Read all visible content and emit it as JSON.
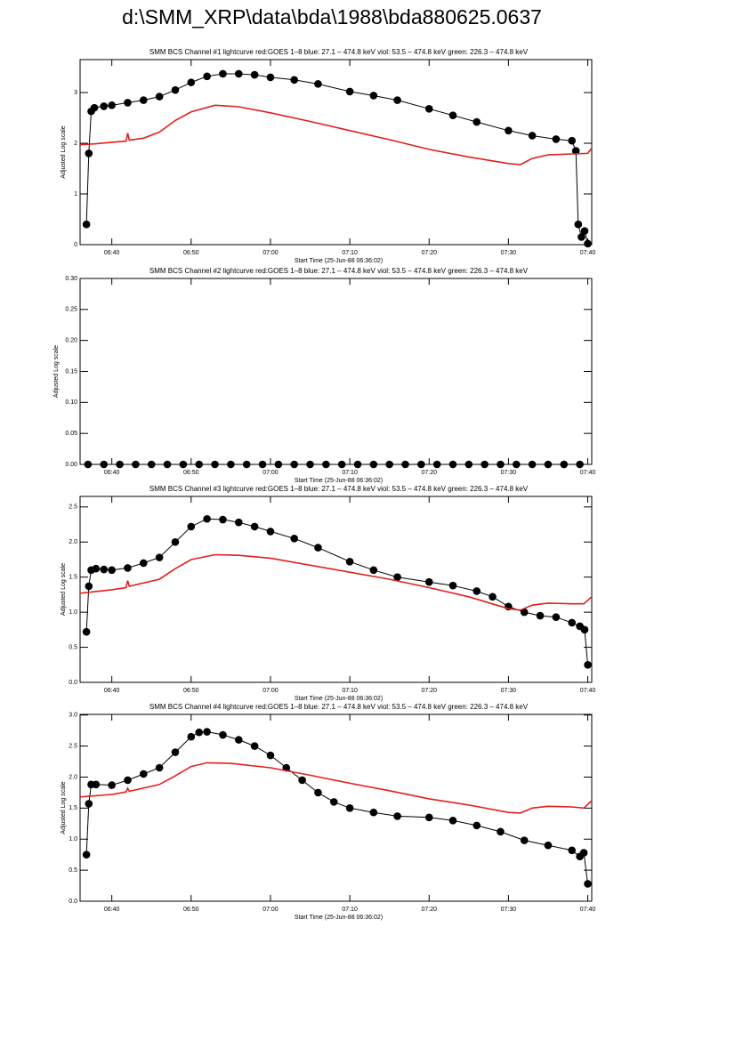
{
  "title": "d:\\SMM_XRP\\data\\bda\\1988\\bda880625.0637",
  "chart_data": [
    {
      "type": "line",
      "title": "SMM BCS Channel #1 lightcurve  red:GOES 1–8  blue: 27.1 – 474.8 keV  viol: 53.5 – 474.8 keV  green: 226.3 – 474.8 keV",
      "x_label": "Start Time (25-Jun-88 06:36:02)",
      "y_label": "Adjusted Log scale",
      "xlim": [
        396,
        460.5
      ],
      "ylim": [
        0,
        3.65
      ],
      "xticks": [
        {
          "value": 400,
          "label": "06:40"
        },
        {
          "value": 410,
          "label": "06:50"
        },
        {
          "value": 420,
          "label": "07:00"
        },
        {
          "value": 430,
          "label": "07:10"
        },
        {
          "value": 440,
          "label": "07:20"
        },
        {
          "value": 450,
          "label": "07:30"
        },
        {
          "value": 460,
          "label": "07:40"
        }
      ],
      "yticks": [
        0,
        1,
        2,
        3
      ],
      "series": [
        {
          "color": "#000000",
          "marker": "circle",
          "x": [
            396.8,
            397.1,
            397.4,
            397.8,
            399,
            400,
            402,
            404,
            406,
            408,
            410,
            412,
            414,
            416,
            418,
            420,
            423,
            426,
            430,
            433,
            436,
            440,
            443,
            446,
            450,
            453,
            456,
            458,
            458.5,
            458.8,
            459.2,
            459.6,
            460
          ],
          "values": [
            0.4,
            1.8,
            2.63,
            2.7,
            2.73,
            2.75,
            2.8,
            2.85,
            2.92,
            3.05,
            3.2,
            3.32,
            3.37,
            3.37,
            3.35,
            3.3,
            3.25,
            3.17,
            3.02,
            2.94,
            2.85,
            2.68,
            2.55,
            2.42,
            2.25,
            2.15,
            2.08,
            2.05,
            1.85,
            0.4,
            0.15,
            0.27,
            0.02
          ]
        },
        {
          "color": "#e0201b",
          "x": [
            396,
            398,
            400,
            401.8,
            402,
            402.2,
            404,
            406,
            408,
            410,
            413,
            416,
            420,
            425,
            430,
            435,
            440,
            445,
            450,
            451.5,
            453,
            455,
            458,
            460,
            460.5
          ],
          "values": [
            1.97,
            1.99,
            2.02,
            2.04,
            2.2,
            2.06,
            2.1,
            2.22,
            2.45,
            2.62,
            2.75,
            2.72,
            2.6,
            2.43,
            2.25,
            2.07,
            1.88,
            1.73,
            1.6,
            1.58,
            1.7,
            1.77,
            1.79,
            1.8,
            1.9
          ]
        }
      ]
    },
    {
      "type": "line",
      "title": "SMM BCS Channel #2 lightcurve  red:GOES 1–8  blue: 27.1 – 474.8 keV  viol: 53.5 – 474.8 keV  green: 226.3 – 474.8 keV",
      "x_label": "Start Time (25-Jun-88 06:36:02)",
      "y_label": "Adjusted Log scale",
      "xlim": [
        396,
        460.5
      ],
      "ylim": [
        0,
        0.3
      ],
      "xticks": [
        {
          "value": 400,
          "label": "06:40"
        },
        {
          "value": 410,
          "label": "06:50"
        },
        {
          "value": 420,
          "label": "07:00"
        },
        {
          "value": 430,
          "label": "07:10"
        },
        {
          "value": 440,
          "label": "07:20"
        },
        {
          "value": 450,
          "label": "07:30"
        },
        {
          "value": 460,
          "label": "07:40"
        }
      ],
      "yticks": [
        {
          "value": 0,
          "label": "0.00"
        },
        {
          "value": 0.05,
          "label": "0.05"
        },
        {
          "value": 0.1,
          "label": "0.10"
        },
        {
          "value": 0.15,
          "label": "0.15"
        },
        {
          "value": 0.2,
          "label": "0.20"
        },
        {
          "value": 0.25,
          "label": "0.25"
        },
        {
          "value": 0.3,
          "label": "0.30"
        }
      ],
      "series": [
        {
          "color": "#000000",
          "marker": "circle",
          "x": [
            397,
            399,
            401,
            403,
            405,
            407,
            409,
            411,
            413,
            415,
            417,
            419,
            421,
            423,
            425,
            427,
            429,
            431,
            433,
            435,
            437,
            439,
            441,
            443,
            445,
            447,
            449,
            451,
            453,
            455,
            457,
            459
          ],
          "values": [
            0,
            0,
            0,
            0,
            0,
            0,
            0,
            0,
            0,
            0,
            0,
            0,
            0,
            0,
            0,
            0,
            0,
            0,
            0,
            0,
            0,
            0,
            0,
            0,
            0,
            0,
            0,
            0,
            0,
            0,
            0,
            0
          ]
        }
      ]
    },
    {
      "type": "line",
      "title": "SMM BCS Channel #3 lightcurve  red:GOES 1–8  blue: 27.1 – 474.8 keV  viol: 53.5 – 474.8 keV  green: 226.3 – 474.8 keV",
      "x_label": "Start Time (25-Jun-88 06:36:02)",
      "y_label": "Adjusted Log scale",
      "xlim": [
        396,
        460.5
      ],
      "ylim": [
        0,
        2.65
      ],
      "xticks": [
        {
          "value": 400,
          "label": "06:40"
        },
        {
          "value": 410,
          "label": "06:50"
        },
        {
          "value": 420,
          "label": "07:00"
        },
        {
          "value": 430,
          "label": "07:10"
        },
        {
          "value": 440,
          "label": "07:20"
        },
        {
          "value": 450,
          "label": "07:30"
        },
        {
          "value": 460,
          "label": "07:40"
        }
      ],
      "yticks": [
        {
          "value": 0,
          "label": "0.0"
        },
        {
          "value": 0.5,
          "label": "0.5"
        },
        {
          "value": 1,
          "label": "1.0"
        },
        {
          "value": 1.5,
          "label": "1.5"
        },
        {
          "value": 2,
          "label": "2.0"
        },
        {
          "value": 2.5,
          "label": "2.5"
        }
      ],
      "series": [
        {
          "color": "#000000",
          "marker": "circle",
          "x": [
            396.8,
            397.1,
            397.4,
            398,
            399,
            400,
            402,
            404,
            406,
            408,
            410,
            412,
            414,
            416,
            418,
            420,
            423,
            426,
            430,
            433,
            436,
            440,
            443,
            446,
            448,
            450,
            452,
            454,
            456,
            458,
            459,
            459.6,
            460
          ],
          "values": [
            0.72,
            1.37,
            1.6,
            1.62,
            1.61,
            1.6,
            1.63,
            1.7,
            1.78,
            2.0,
            2.22,
            2.33,
            2.32,
            2.28,
            2.22,
            2.15,
            2.05,
            1.92,
            1.72,
            1.6,
            1.5,
            1.43,
            1.38,
            1.3,
            1.22,
            1.08,
            1.0,
            0.95,
            0.93,
            0.85,
            0.8,
            0.75,
            0.25
          ]
        },
        {
          "color": "#e0201b",
          "x": [
            396,
            400,
            401.8,
            402,
            402.2,
            406,
            408,
            410,
            413,
            416,
            420,
            425,
            430,
            435,
            440,
            445,
            450,
            451.5,
            453,
            455,
            458,
            459.5,
            460.5
          ],
          "values": [
            1.27,
            1.32,
            1.35,
            1.45,
            1.37,
            1.47,
            1.62,
            1.75,
            1.82,
            1.81,
            1.77,
            1.67,
            1.57,
            1.47,
            1.35,
            1.22,
            1.05,
            1.03,
            1.1,
            1.13,
            1.12,
            1.12,
            1.22
          ]
        }
      ]
    },
    {
      "type": "line",
      "title": "SMM BCS Channel #4 lightcurve  red:GOES 1–8  blue: 27.1 – 474.8 keV  viol: 53.5 – 474.8 keV  green: 226.3 – 474.8 keV",
      "x_label": "Start Time (25-Jun-88 06:36:02)",
      "y_label": "Adjusted Log scale",
      "xlim": [
        396,
        460.5
      ],
      "ylim": [
        0,
        3.01
      ],
      "xticks": [
        {
          "value": 400,
          "label": "06:40"
        },
        {
          "value": 410,
          "label": "06:50"
        },
        {
          "value": 420,
          "label": "07:00"
        },
        {
          "value": 430,
          "label": "07:10"
        },
        {
          "value": 440,
          "label": "07:20"
        },
        {
          "value": 450,
          "label": "07:30"
        },
        {
          "value": 460,
          "label": "07:40"
        }
      ],
      "yticks": [
        {
          "value": 0,
          "label": "0.0"
        },
        {
          "value": 0.5,
          "label": "0.5"
        },
        {
          "value": 1,
          "label": "1.0"
        },
        {
          "value": 1.5,
          "label": "1.5"
        },
        {
          "value": 2,
          "label": "2.0"
        },
        {
          "value": 2.5,
          "label": "2.5"
        },
        {
          "value": 3,
          "label": "3.0"
        }
      ],
      "series": [
        {
          "color": "#000000",
          "marker": "circle",
          "x": [
            396.8,
            397.1,
            397.4,
            398,
            400,
            402,
            404,
            406,
            408,
            410,
            411,
            412,
            414,
            416,
            418,
            420,
            422,
            424,
            426,
            428,
            430,
            433,
            436,
            440,
            443,
            446,
            449,
            452,
            455,
            458,
            459,
            459.5,
            460
          ],
          "values": [
            0.75,
            1.57,
            1.88,
            1.88,
            1.87,
            1.95,
            2.05,
            2.15,
            2.4,
            2.65,
            2.72,
            2.73,
            2.68,
            2.6,
            2.5,
            2.35,
            2.15,
            1.95,
            1.75,
            1.6,
            1.5,
            1.43,
            1.37,
            1.35,
            1.3,
            1.22,
            1.12,
            0.98,
            0.9,
            0.82,
            0.72,
            0.78,
            0.28
          ]
        },
        {
          "color": "#e0201b",
          "x": [
            396,
            400,
            401.8,
            402,
            402.2,
            406,
            408,
            410,
            412,
            415,
            420,
            425,
            430,
            435,
            440,
            445,
            450,
            451.5,
            453,
            455,
            458,
            459.5,
            460.5
          ],
          "values": [
            1.68,
            1.72,
            1.76,
            1.82,
            1.77,
            1.88,
            2.02,
            2.17,
            2.23,
            2.22,
            2.15,
            2.03,
            1.9,
            1.78,
            1.65,
            1.55,
            1.43,
            1.42,
            1.5,
            1.53,
            1.52,
            1.5,
            1.62
          ]
        }
      ]
    }
  ]
}
